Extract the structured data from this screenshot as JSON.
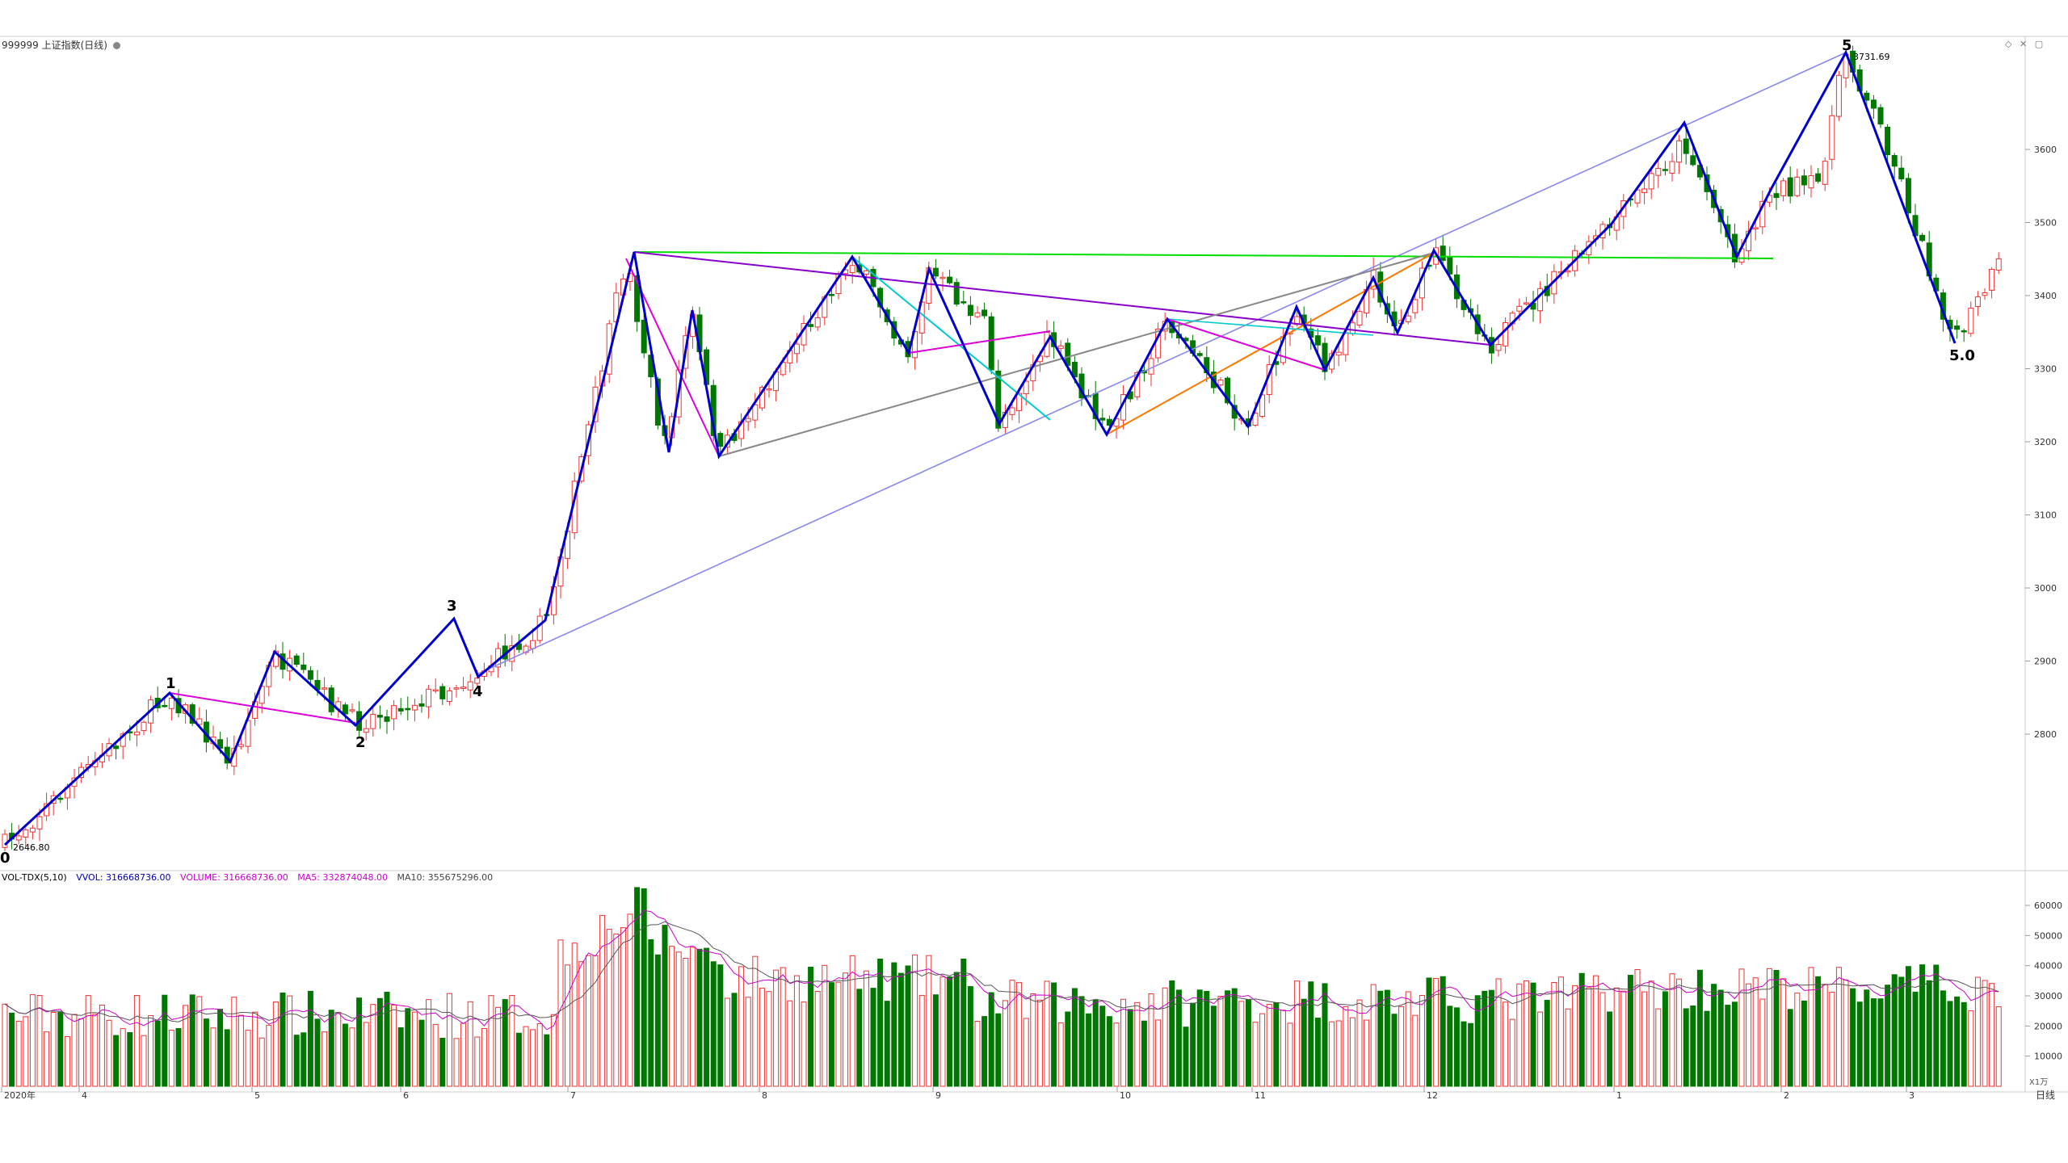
{
  "header": {
    "symbol": "999999 上证指数(日线)",
    "icon": "gear-icon"
  },
  "volume_legend": {
    "name": "VOL-TDX(5,10)",
    "vvol": "VVOL: 316668736.00",
    "volume": "VOLUME: 316668736.00",
    "ma5": "MA5: 332874048.00",
    "ma10": "MA10: 355675296.00"
  },
  "price_labels": {
    "low": "2646.80",
    "high": "3731.69"
  },
  "wave_labels": [
    "0",
    "1",
    "2",
    "3",
    "4",
    "5",
    "5.0"
  ],
  "vol_unit": "X1万",
  "period_button": "日线",
  "colors": {
    "up": "#ee3333",
    "down": "#007700",
    "wave": "#0000cc"
  },
  "chart_data": {
    "type": "candlestick",
    "price_axis": {
      "ticks": [
        2800,
        2900,
        3000,
        3100,
        3200,
        3300,
        3400,
        3500,
        3600
      ],
      "range": [
        2640,
        3760
      ]
    },
    "volume_axis": {
      "ticks": [
        10000,
        20000,
        30000,
        40000,
        50000,
        60000
      ],
      "range": [
        0,
        70000
      ],
      "unit": "X1万"
    },
    "x_labels": [
      "2020年",
      "4",
      "5",
      "6",
      "7",
      "8",
      "9",
      "10",
      "11",
      "12",
      "1",
      "2",
      "3"
    ],
    "annotations": [
      {
        "text": "2646.80",
        "type": "low"
      },
      {
        "text": "3731.69",
        "type": "high"
      }
    ],
    "wave_points": [
      {
        "label": "0",
        "value": 2646.8
      },
      {
        "label": "1",
        "value": 2855
      },
      {
        "label": "2",
        "value": 2810
      },
      {
        "label": "3",
        "value": 2955
      },
      {
        "label": "4",
        "value": 2880
      },
      {
        "label": "5",
        "value": 3731.69
      },
      {
        "label": "5.0",
        "value": 3335
      }
    ]
  }
}
